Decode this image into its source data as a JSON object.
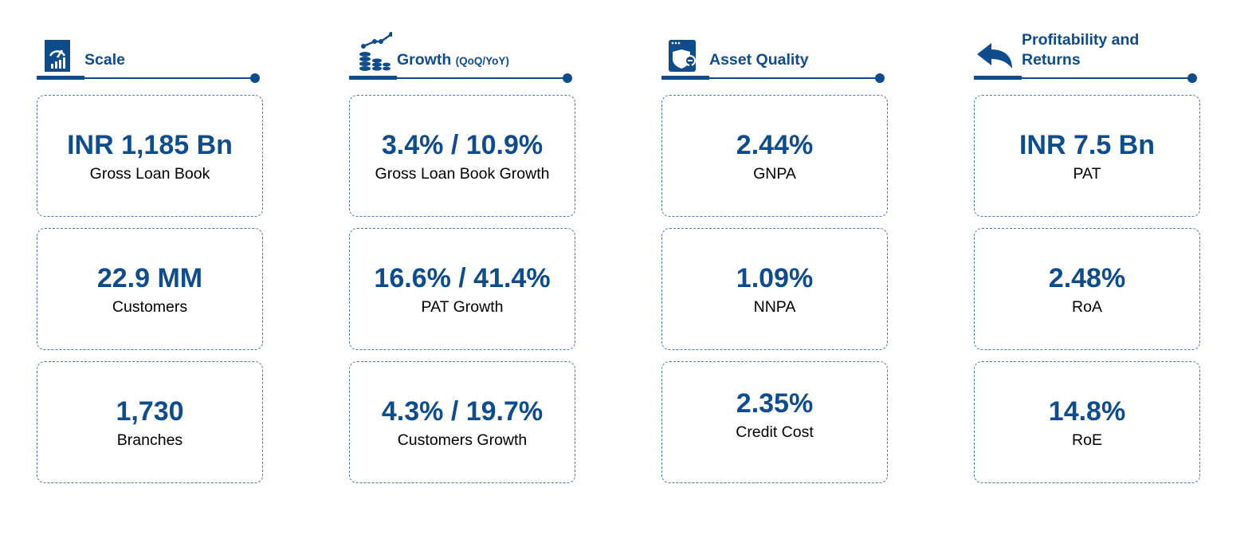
{
  "columns": [
    {
      "icon": "gauge-chart-icon",
      "title": "Scale",
      "title_sub": "",
      "cards": [
        {
          "value": "INR 1,185 Bn",
          "label": "Gross Loan Book"
        },
        {
          "value": "22.9 MM",
          "label": "Customers"
        },
        {
          "value": "1,730",
          "label": "Branches"
        }
      ]
    },
    {
      "icon": "coins-growth-icon",
      "title": "Growth",
      "title_sub": "(QoQ/YoY)",
      "cards": [
        {
          "value": "3.4% / 10.9%",
          "label": "Gross Loan Book Growth"
        },
        {
          "value": "16.6% / 41.4%",
          "label": "PAT Growth"
        },
        {
          "value": "4.3% / 19.7%",
          "label": "Customers Growth"
        }
      ]
    },
    {
      "icon": "shield-window-icon",
      "title": "Asset Quality",
      "title_sub": "",
      "cards": [
        {
          "value": "2.44%",
          "label": "GNPA"
        },
        {
          "value": "1.09%",
          "label": "NNPA"
        },
        {
          "value": "2.35%",
          "label": "Credit Cost"
        }
      ]
    },
    {
      "icon": "return-arrow-icon",
      "title": "Profitability and Returns",
      "title_sub": "",
      "cards": [
        {
          "value": "INR 7.5 Bn",
          "label": "PAT"
        },
        {
          "value": "2.48%",
          "label": "RoA"
        },
        {
          "value": "14.8%",
          "label": "RoE"
        }
      ]
    }
  ],
  "colors": {
    "accent": "#0f4c8c",
    "card_border": "#4d79b0",
    "label_text": "#000000"
  }
}
